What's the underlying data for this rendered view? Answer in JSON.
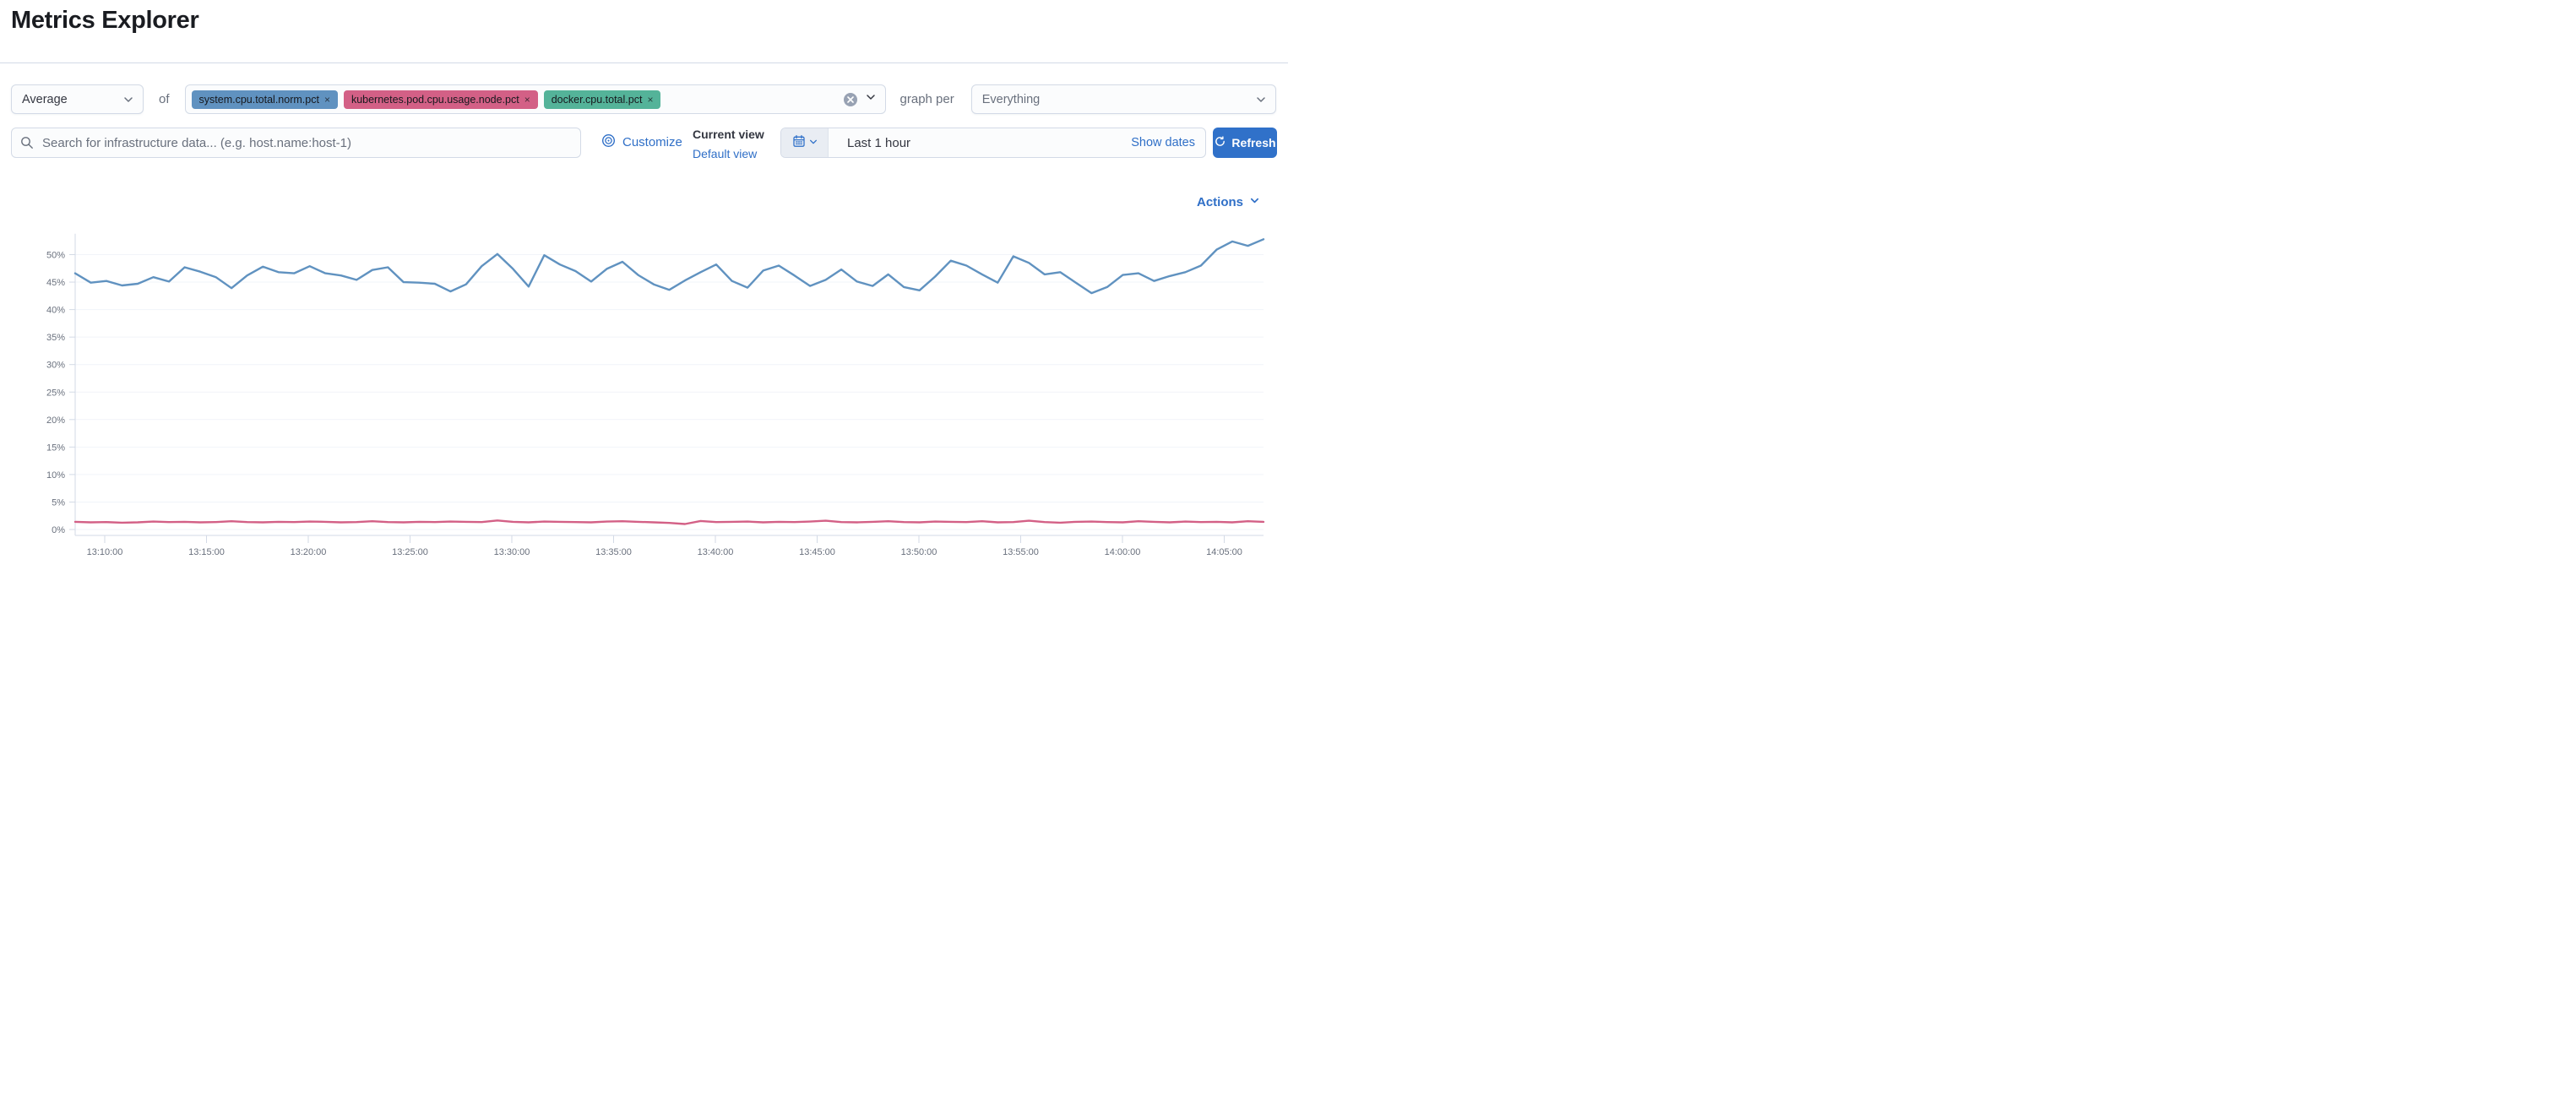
{
  "page": {
    "title": "Metrics Explorer"
  },
  "controls": {
    "aggregation": {
      "value": "Average"
    },
    "of_label": "of",
    "metrics": [
      {
        "label": "system.cpu.total.norm.pct",
        "color": "#6092C0",
        "remove_icon": "x"
      },
      {
        "label": "kubernetes.pod.cpu.usage.node.pct",
        "color": "#D36086",
        "remove_icon": "x"
      },
      {
        "label": "docker.cpu.total.pct",
        "color": "#54B399",
        "remove_icon": "x"
      }
    ],
    "graph_per_label": "graph per",
    "group_by": {
      "value": "Everything"
    }
  },
  "toolbar": {
    "search": {
      "placeholder": "Search for infrastructure data... (e.g. host.name:host-1)",
      "value": ""
    },
    "customize_label": "Customize",
    "current_view_label": "Current view",
    "view_name": "Default view",
    "time_range": "Last 1 hour",
    "show_dates_label": "Show dates",
    "refresh_label": "Refresh"
  },
  "chart": {
    "actions_label": "Actions"
  },
  "colors": {
    "link_blue": "#2f6fc7",
    "button_blue": "#3071c9",
    "series_blue": "#6092C0",
    "series_pink": "#D36086",
    "grid": "#f1f4f9",
    "axis": "#d3dae6",
    "tick_text": "#69707d"
  },
  "chart_data": {
    "type": "line",
    "title": "",
    "xlabel": "",
    "ylabel": "",
    "ylim": [
      0,
      55
    ],
    "grid": true,
    "legend_position": "none",
    "y_ticks": [
      "0%",
      "5%",
      "10%",
      "15%",
      "20%",
      "25%",
      "30%",
      "35%",
      "40%",
      "45%",
      "50%"
    ],
    "x_ticks": [
      "13:10:00",
      "13:15:00",
      "13:20:00",
      "13:25:00",
      "13:30:00",
      "13:35:00",
      "13:40:00",
      "13:45:00",
      "13:50:00",
      "13:55:00",
      "14:00:00",
      "14:05:00"
    ],
    "x_range_note": "data spans approx 13:08:30 - 14:07:00",
    "series": [
      {
        "name": "system.cpu.total.norm.pct",
        "color": "#6092C0",
        "unit": "%",
        "values": [
          46.6,
          44.9,
          45.2,
          44.4,
          44.7,
          45.9,
          45.1,
          47.7,
          46.9,
          45.9,
          43.9,
          46.2,
          47.8,
          46.8,
          46.6,
          47.9,
          46.6,
          46.2,
          45.4,
          47.2,
          47.7,
          45.0,
          44.9,
          44.7,
          43.3,
          44.6,
          47.9,
          50.1,
          47.4,
          44.2,
          49.9,
          48.2,
          47.0,
          45.1,
          47.4,
          48.7,
          46.3,
          44.6,
          43.6,
          45.3,
          46.8,
          48.2,
          45.2,
          44.0,
          47.1,
          48.0,
          46.2,
          44.3,
          45.4,
          47.3,
          45.1,
          44.3,
          46.4,
          44.1,
          43.5,
          46.0,
          48.9,
          48.0,
          46.4,
          44.9,
          49.7,
          48.5,
          46.4,
          46.8,
          44.9,
          43.0,
          44.1,
          46.3,
          46.6,
          45.2,
          46.1,
          46.8,
          48.0,
          50.9,
          52.4,
          51.6,
          52.8
        ]
      },
      {
        "name": "kubernetes.pod.cpu.usage.node.pct",
        "color": "#D36086",
        "unit": "%",
        "values": [
          1.4,
          1.3,
          1.35,
          1.25,
          1.3,
          1.45,
          1.35,
          1.4,
          1.3,
          1.35,
          1.5,
          1.35,
          1.3,
          1.4,
          1.35,
          1.45,
          1.4,
          1.3,
          1.35,
          1.5,
          1.35,
          1.3,
          1.4,
          1.35,
          1.45,
          1.4,
          1.35,
          1.65,
          1.4,
          1.3,
          1.45,
          1.4,
          1.35,
          1.3,
          1.45,
          1.5,
          1.4,
          1.3,
          1.2,
          1.0,
          1.55,
          1.35,
          1.4,
          1.45,
          1.3,
          1.4,
          1.35,
          1.45,
          1.6,
          1.35,
          1.3,
          1.4,
          1.5,
          1.35,
          1.3,
          1.45,
          1.4,
          1.35,
          1.5,
          1.3,
          1.35,
          1.6,
          1.35,
          1.25,
          1.4,
          1.45,
          1.35,
          1.3,
          1.5,
          1.4,
          1.3,
          1.45,
          1.35,
          1.4,
          1.3,
          1.5,
          1.4
        ]
      }
    ]
  }
}
